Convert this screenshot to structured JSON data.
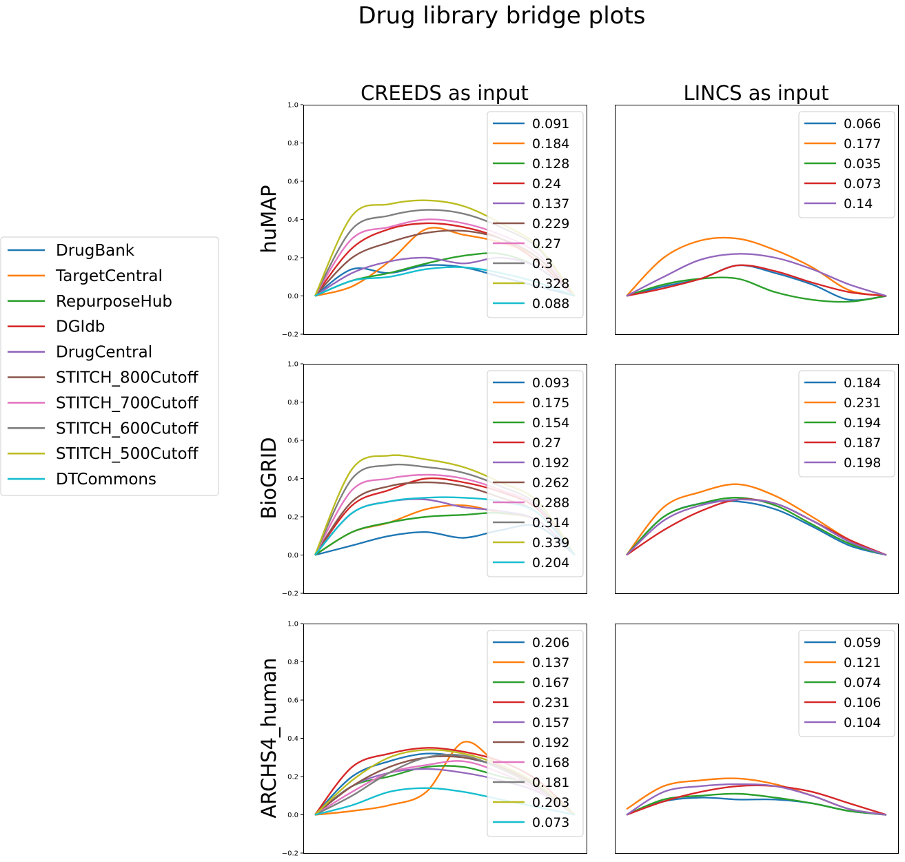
{
  "title": "Drug library bridge plots",
  "column_titles": [
    "CREEDS as input",
    "LINCS as input"
  ],
  "row_titles": [
    "huMAP",
    "BioGRID",
    "ARCHS4_human"
  ],
  "main_legend": {
    "placement": "left",
    "entries": [
      "DrugBank",
      "TargetCentral",
      "RepurposeHub",
      "DGIdb",
      "DrugCentral",
      "STITCH_800Cutoff",
      "STITCH_700Cutoff",
      "STITCH_600Cutoff",
      "STITCH_500Cutoff",
      "DTCommons"
    ]
  },
  "colors": {
    "DrugBank": "#1f77b4",
    "TargetCentral": "#ff7f0e",
    "RepurposeHub": "#2ca02c",
    "DGIdb": "#d62728",
    "DrugCentral": "#9467bd",
    "STITCH_800Cutoff": "#8c564b",
    "STITCH_700Cutoff": "#e377c2",
    "STITCH_600Cutoff": "#7f7f7f",
    "STITCH_500Cutoff": "#bcbd22",
    "DTCommons": "#17becf"
  },
  "chart_data": [
    {
      "type": "line",
      "row": "huMAP",
      "column": "CREEDS as input",
      "ylim": [
        -0.2,
        1.0
      ],
      "yticks": [
        "1.0",
        "0.8",
        "0.6",
        "0.4",
        "0.2",
        "0.0",
        "−0.2"
      ],
      "xticks": false,
      "legend_placement": "top-right",
      "series": [
        {
          "library": "DrugBank",
          "label": "0.091",
          "values": [
            0,
            0.14,
            0.12,
            0.16,
            0.15,
            0.1,
            0.05,
            0
          ]
        },
        {
          "library": "TargetCentral",
          "label": "0.184",
          "values": [
            0,
            0.05,
            0.18,
            0.35,
            0.32,
            0.28,
            0.2,
            0
          ]
        },
        {
          "library": "RepurposeHub",
          "label": "0.128",
          "values": [
            0,
            0.08,
            0.12,
            0.17,
            0.21,
            0.22,
            0.15,
            0
          ]
        },
        {
          "library": "DGIdb",
          "label": "0.24",
          "values": [
            0,
            0.25,
            0.35,
            0.38,
            0.36,
            0.3,
            0.18,
            0
          ]
        },
        {
          "library": "DrugCentral",
          "label": "0.137",
          "values": [
            0,
            0.12,
            0.18,
            0.2,
            0.17,
            0.2,
            0.15,
            0
          ]
        },
        {
          "library": "STITCH_800Cutoff",
          "label": "0.229",
          "values": [
            0,
            0.2,
            0.28,
            0.33,
            0.34,
            0.3,
            0.2,
            0
          ]
        },
        {
          "library": "STITCH_700Cutoff",
          "label": "0.27",
          "values": [
            0,
            0.3,
            0.36,
            0.4,
            0.38,
            0.32,
            0.22,
            0
          ]
        },
        {
          "library": "STITCH_600Cutoff",
          "label": "0.3",
          "values": [
            0,
            0.35,
            0.42,
            0.45,
            0.43,
            0.36,
            0.25,
            0
          ]
        },
        {
          "library": "STITCH_500Cutoff",
          "label": "0.328",
          "values": [
            0,
            0.42,
            0.48,
            0.5,
            0.47,
            0.38,
            0.26,
            0
          ]
        },
        {
          "library": "DTCommons",
          "label": "0.088",
          "values": [
            0,
            0.08,
            0.1,
            0.14,
            0.15,
            0.12,
            0.07,
            0
          ]
        }
      ]
    },
    {
      "type": "line",
      "row": "huMAP",
      "column": "LINCS as input",
      "ylim": [
        -0.2,
        1.0
      ],
      "yticks": false,
      "xticks": false,
      "legend_placement": "top-right",
      "series": [
        {
          "library": "DrugBank",
          "label": "0.066",
          "values": [
            0,
            0.05,
            0.09,
            0.16,
            0.12,
            0.06,
            -0.02,
            0
          ]
        },
        {
          "library": "TargetCentral",
          "label": "0.177",
          "values": [
            0,
            0.2,
            0.29,
            0.3,
            0.24,
            0.15,
            0.03,
            0
          ]
        },
        {
          "library": "RepurposeHub",
          "label": "0.035",
          "values": [
            0,
            0.06,
            0.09,
            0.09,
            0.02,
            -0.02,
            -0.03,
            0
          ]
        },
        {
          "library": "DGIdb",
          "label": "0.073",
          "values": [
            0,
            0.04,
            0.09,
            0.16,
            0.13,
            0.07,
            0.02,
            0
          ]
        },
        {
          "library": "DrugCentral",
          "label": "0.14",
          "values": [
            0,
            0.1,
            0.19,
            0.22,
            0.2,
            0.14,
            0.06,
            0
          ]
        }
      ]
    },
    {
      "type": "line",
      "row": "BioGRID",
      "column": "CREEDS as input",
      "ylim": [
        -0.2,
        1.0
      ],
      "yticks": [
        "1.0",
        "0.8",
        "0.6",
        "0.4",
        "0.2",
        "0.0",
        "−0.2"
      ],
      "xticks": false,
      "legend_placement": "top-right",
      "series": [
        {
          "library": "DrugBank",
          "label": "0.093",
          "values": [
            0,
            0.05,
            0.1,
            0.12,
            0.09,
            0.13,
            0.15,
            0
          ]
        },
        {
          "library": "TargetCentral",
          "label": "0.175",
          "values": [
            0,
            0.12,
            0.17,
            0.24,
            0.26,
            0.22,
            0.18,
            0
          ]
        },
        {
          "library": "RepurposeHub",
          "label": "0.154",
          "values": [
            0,
            0.12,
            0.17,
            0.2,
            0.21,
            0.22,
            0.18,
            0
          ]
        },
        {
          "library": "DGIdb",
          "label": "0.27",
          "values": [
            0,
            0.26,
            0.34,
            0.4,
            0.38,
            0.33,
            0.24,
            0
          ]
        },
        {
          "library": "DrugCentral",
          "label": "0.192",
          "values": [
            0,
            0.22,
            0.28,
            0.29,
            0.25,
            0.23,
            0.18,
            0
          ]
        },
        {
          "library": "STITCH_800Cutoff",
          "label": "0.262",
          "values": [
            0,
            0.28,
            0.36,
            0.38,
            0.36,
            0.3,
            0.22,
            0
          ]
        },
        {
          "library": "STITCH_700Cutoff",
          "label": "0.288",
          "values": [
            0,
            0.34,
            0.4,
            0.42,
            0.4,
            0.34,
            0.25,
            0
          ]
        },
        {
          "library": "STITCH_600Cutoff",
          "label": "0.314",
          "values": [
            0,
            0.4,
            0.47,
            0.46,
            0.43,
            0.36,
            0.26,
            0
          ]
        },
        {
          "library": "STITCH_500Cutoff",
          "label": "0.339",
          "values": [
            0,
            0.45,
            0.52,
            0.5,
            0.46,
            0.38,
            0.28,
            0
          ]
        },
        {
          "library": "DTCommons",
          "label": "0.204",
          "values": [
            0,
            0.22,
            0.28,
            0.3,
            0.3,
            0.28,
            0.22,
            0
          ]
        }
      ]
    },
    {
      "type": "line",
      "row": "BioGRID",
      "column": "LINCS as input",
      "ylim": [
        -0.2,
        1.0
      ],
      "yticks": false,
      "xticks": false,
      "legend_placement": "top-right",
      "series": [
        {
          "library": "DrugBank",
          "label": "0.184",
          "values": [
            0,
            0.2,
            0.27,
            0.28,
            0.24,
            0.15,
            0.05,
            0
          ]
        },
        {
          "library": "TargetCentral",
          "label": "0.231",
          "values": [
            0,
            0.25,
            0.33,
            0.37,
            0.31,
            0.2,
            0.08,
            0
          ]
        },
        {
          "library": "RepurposeHub",
          "label": "0.194",
          "values": [
            0,
            0.2,
            0.27,
            0.3,
            0.26,
            0.16,
            0.06,
            0
          ]
        },
        {
          "library": "DGIdb",
          "label": "0.187",
          "values": [
            0,
            0.13,
            0.23,
            0.29,
            0.27,
            0.18,
            0.08,
            0
          ]
        },
        {
          "library": "DrugCentral",
          "label": "0.198",
          "values": [
            0,
            0.18,
            0.26,
            0.29,
            0.27,
            0.18,
            0.07,
            0
          ]
        }
      ]
    },
    {
      "type": "line",
      "row": "ARCHS4_human",
      "column": "CREEDS as input",
      "ylim": [
        -0.2,
        1.0
      ],
      "yticks": [
        "1.0",
        "0.8",
        "0.6",
        "0.4",
        "0.2",
        "0.0",
        "−0.2"
      ],
      "xticks": false,
      "legend_placement": "top-right",
      "series": [
        {
          "library": "DrugBank",
          "label": "0.206",
          "values": [
            0,
            0.2,
            0.28,
            0.32,
            0.3,
            0.25,
            0.15,
            0
          ]
        },
        {
          "library": "TargetCentral",
          "label": "0.137",
          "values": [
            0,
            0.02,
            0.05,
            0.12,
            0.38,
            0.25,
            0.15,
            0
          ]
        },
        {
          "library": "RepurposeHub",
          "label": "0.167",
          "values": [
            0,
            0.15,
            0.2,
            0.25,
            0.25,
            0.2,
            0.15,
            0
          ]
        },
        {
          "library": "DGIdb",
          "label": "0.231",
          "values": [
            0,
            0.25,
            0.32,
            0.35,
            0.33,
            0.28,
            0.18,
            0
          ]
        },
        {
          "library": "DrugCentral",
          "label": "0.157",
          "values": [
            0,
            0.15,
            0.22,
            0.24,
            0.22,
            0.18,
            0.12,
            0
          ]
        },
        {
          "library": "STITCH_800Cutoff",
          "label": "0.192",
          "values": [
            0,
            0.15,
            0.25,
            0.3,
            0.3,
            0.25,
            0.15,
            0
          ]
        },
        {
          "library": "STITCH_700Cutoff",
          "label": "0.168",
          "values": [
            0,
            0.12,
            0.22,
            0.26,
            0.28,
            0.22,
            0.13,
            0
          ]
        },
        {
          "library": "STITCH_600Cutoff",
          "label": "0.181",
          "values": [
            0,
            0.1,
            0.22,
            0.3,
            0.31,
            0.24,
            0.14,
            0
          ]
        },
        {
          "library": "STITCH_500Cutoff",
          "label": "0.203",
          "values": [
            0,
            0.18,
            0.3,
            0.34,
            0.32,
            0.26,
            0.16,
            0
          ]
        },
        {
          "library": "DTCommons",
          "label": "0.073",
          "values": [
            0,
            0.05,
            0.12,
            0.14,
            0.12,
            0.08,
            0.04,
            0
          ]
        }
      ]
    },
    {
      "type": "line",
      "row": "ARCHS4_human",
      "column": "LINCS as input",
      "ylim": [
        -0.2,
        1.0
      ],
      "yticks": false,
      "xticks": false,
      "legend_placement": "top-right",
      "series": [
        {
          "library": "DrugBank",
          "label": "0.059",
          "values": [
            0,
            0.07,
            0.09,
            0.08,
            0.08,
            0.06,
            0.02,
            0
          ]
        },
        {
          "library": "TargetCentral",
          "label": "0.121",
          "values": [
            0.03,
            0.15,
            0.18,
            0.19,
            0.16,
            0.1,
            0.03,
            0
          ]
        },
        {
          "library": "RepurposeHub",
          "label": "0.074",
          "values": [
            0,
            0.08,
            0.1,
            0.11,
            0.09,
            0.06,
            0.02,
            0
          ]
        },
        {
          "library": "DGIdb",
          "label": "0.106",
          "values": [
            0,
            0.07,
            0.12,
            0.15,
            0.15,
            0.12,
            0.06,
            0
          ]
        },
        {
          "library": "DrugCentral",
          "label": "0.104",
          "values": [
            0,
            0.12,
            0.15,
            0.16,
            0.15,
            0.1,
            0.03,
            0
          ]
        }
      ]
    }
  ]
}
